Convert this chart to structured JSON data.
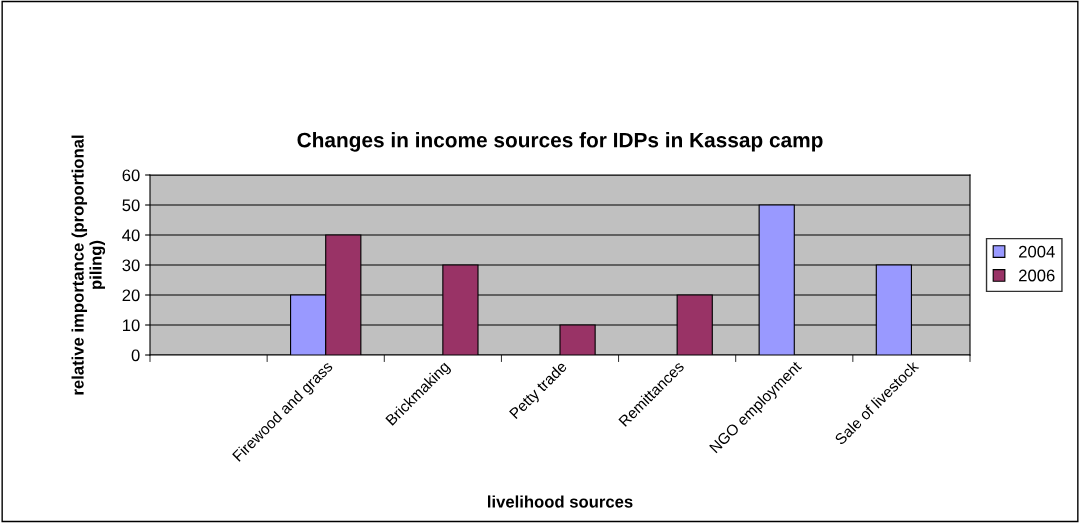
{
  "chart_data": {
    "type": "bar",
    "title": "Changes in income sources for IDPs in Kassap camp",
    "xlabel": "livelihood sources",
    "ylabel": "relative importance (proportional\npiling)",
    "categories": [
      null,
      "Firewood and grass",
      "Brickmaking",
      "Petty trade",
      "Remittances",
      "NGO employment",
      "Sale of livestock"
    ],
    "series": [
      {
        "name": "2004",
        "color": "#9999ff",
        "values": [
          null,
          20,
          null,
          null,
          null,
          50,
          30
        ]
      },
      {
        "name": "2006",
        "color": "#993366",
        "values": [
          null,
          40,
          30,
          10,
          20,
          null,
          null
        ]
      }
    ],
    "ylim": [
      0,
      60
    ],
    "yticks": [
      0,
      10,
      20,
      30,
      40,
      50,
      60
    ],
    "grid": "y",
    "legend": "right"
  }
}
